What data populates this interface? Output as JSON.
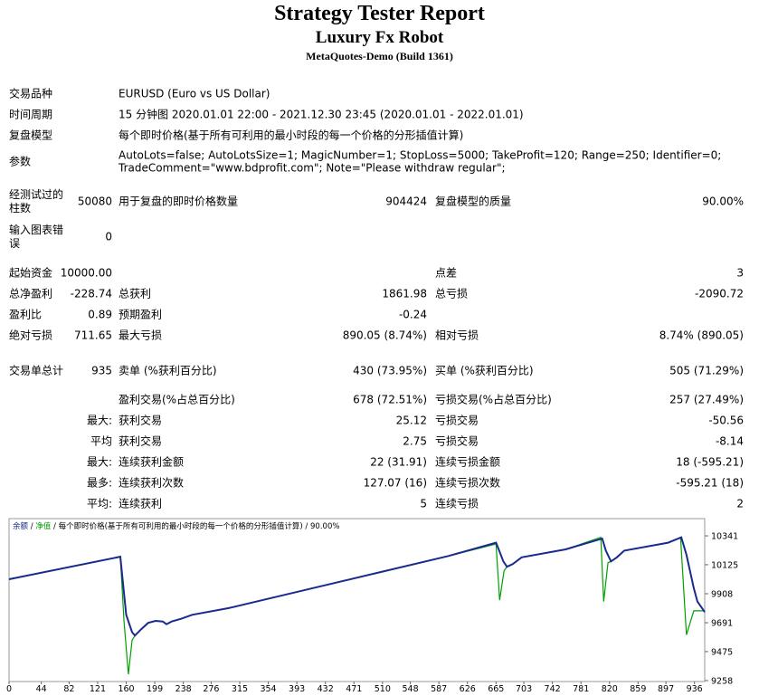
{
  "header": {
    "title": "Strategy Tester Report",
    "subtitle": "Luxury Fx Robot",
    "build": "MetaQuotes-Demo (Build 1361)"
  },
  "settings": [
    {
      "label": "交易品种",
      "value": [
        "EURUSD (Euro vs US Dollar)"
      ]
    },
    {
      "label": "时间周期",
      "value": [
        "15 分钟图 2020.01.01 22:00 - 2021.12.30 23:45 (2020.01.01 - 2022.01.01)"
      ]
    },
    {
      "label": "复盘模型",
      "value": [
        "每个即时价格(基于所有可利用的最小时段的每一个价格的分形插值计算)"
      ]
    },
    {
      "label": "参数",
      "value": [
        "AutoLots=false; AutoLotsSize=1; MagicNumber=1; StopLoss=5000; TakeProfit=120; Range=250; Identifier=0;",
        "TradeComment=\"www.bdprofit.com\"; Note=\"Please withdraw regular\";"
      ]
    }
  ],
  "stats": [
    {
      "l1": "经测试过的柱数",
      "v1": "50080",
      "l2": "用于复盘的即时价格数量",
      "v2": "904424",
      "l3": "复盘模型的质量",
      "v3": "90.00%"
    },
    {
      "l1": "输入图表错误",
      "v1": "0"
    },
    {
      "l1": "起始资金",
      "v1": "10000.00",
      "l3": "点差",
      "v3": "3"
    },
    {
      "l1": "总净盈利",
      "v1": "-228.74",
      "l2": "总获利",
      "v2": "1861.98",
      "l3": "总亏损",
      "v3": "-2090.72"
    },
    {
      "l1": "盈利比",
      "v1": "0.89",
      "l2": "预期盈利",
      "v2": "-0.24"
    },
    {
      "l1": "绝对亏损",
      "v1": "711.65",
      "l2": "最大亏损",
      "v2": "890.05 (8.74%)",
      "l3": "相对亏损",
      "v3": "8.74% (890.05)"
    },
    {
      "l1": "交易单总计",
      "v1": "935",
      "l2": "卖单 (%获利百分比)",
      "v2": "430 (73.95%)",
      "l3": "买单 (%获利百分比)",
      "v3": "505 (71.29%)"
    },
    {
      "l2": "盈利交易(%占总百分比)",
      "v2": "678 (72.51%)",
      "l3": "亏损交易(%占总百分比)",
      "v3": "257 (27.49%)"
    },
    {
      "v1": "最大:",
      "l2": "获利交易",
      "v2": "25.12",
      "l3": "亏损交易",
      "v3": "-50.56"
    },
    {
      "v1": "平均",
      "l2": "获利交易",
      "v2": "2.75",
      "l3": "亏损交易",
      "v3": "-8.14"
    },
    {
      "v1": "最大:",
      "l2": "连续获利金额",
      "v2": "22 (31.91)",
      "l3": "连续亏损金额",
      "v3": "18 (-595.21)"
    },
    {
      "v1": "最多:",
      "l2": "连续获利次数",
      "v2": "127.07 (16)",
      "l3": "连续亏损次数",
      "v3": "-595.21 (18)"
    },
    {
      "v1": "平均:",
      "l2": "连续获利",
      "v2": "5",
      "l3": "连续亏损",
      "v3": "2"
    }
  ],
  "chart_data": {
    "type": "line",
    "legend_separator": " / ",
    "legend_model": "每个即时价格(基于所有可利用的最小时段的每一个价格的分形插值计算)",
    "legend_quality": "90.00%",
    "xlim": [
      0,
      950
    ],
    "ylim": [
      9251,
      10470
    ],
    "xticks": [
      0,
      44,
      82,
      121,
      160,
      199,
      238,
      276,
      315,
      354,
      393,
      432,
      471,
      510,
      548,
      587,
      626,
      665,
      703,
      742,
      781,
      820,
      859,
      897,
      936
    ],
    "yticks": [
      9258,
      9475,
      9691,
      9908,
      10125,
      10341
    ],
    "series": [
      {
        "name": "净值",
        "color": "#00a000",
        "x": [
          0,
          152,
          157,
          163,
          168,
          172,
          180,
          190,
          200,
          210,
          215,
          222,
          235,
          250,
          300,
          400,
          500,
          600,
          665,
          670,
          676,
          680,
          688,
          700,
          760,
          808,
          812,
          818,
          822,
          830,
          840,
          900,
          917,
          925,
          935,
          950
        ],
        "values": [
          10016,
          10185,
          9700,
          9305,
          9560,
          9595,
          9640,
          9690,
          9705,
          9700,
          9680,
          9700,
          9720,
          9750,
          9800,
          9930,
          10060,
          10190,
          10280,
          9860,
          10080,
          10110,
          10130,
          10180,
          10240,
          10330,
          9850,
          10140,
          10150,
          10180,
          10230,
          10290,
          10330,
          9600,
          9780,
          9780
        ]
      },
      {
        "name": "余额",
        "color": "#1a2a8c",
        "x": [
          0,
          152,
          160,
          168,
          172,
          180,
          190,
          200,
          210,
          215,
          222,
          235,
          250,
          300,
          400,
          500,
          600,
          665,
          668,
          675,
          680,
          688,
          700,
          760,
          810,
          815,
          822,
          830,
          840,
          900,
          918,
          925,
          935,
          940,
          950
        ],
        "values": [
          10016,
          10185,
          9750,
          9620,
          9595,
          9640,
          9690,
          9705,
          9700,
          9680,
          9700,
          9720,
          9750,
          9800,
          9930,
          10060,
          10190,
          10290,
          10250,
          10150,
          10110,
          10130,
          10180,
          10240,
          10320,
          10230,
          10150,
          10180,
          10230,
          10290,
          10330,
          10200,
          9950,
          9850,
          9771
        ]
      }
    ]
  }
}
